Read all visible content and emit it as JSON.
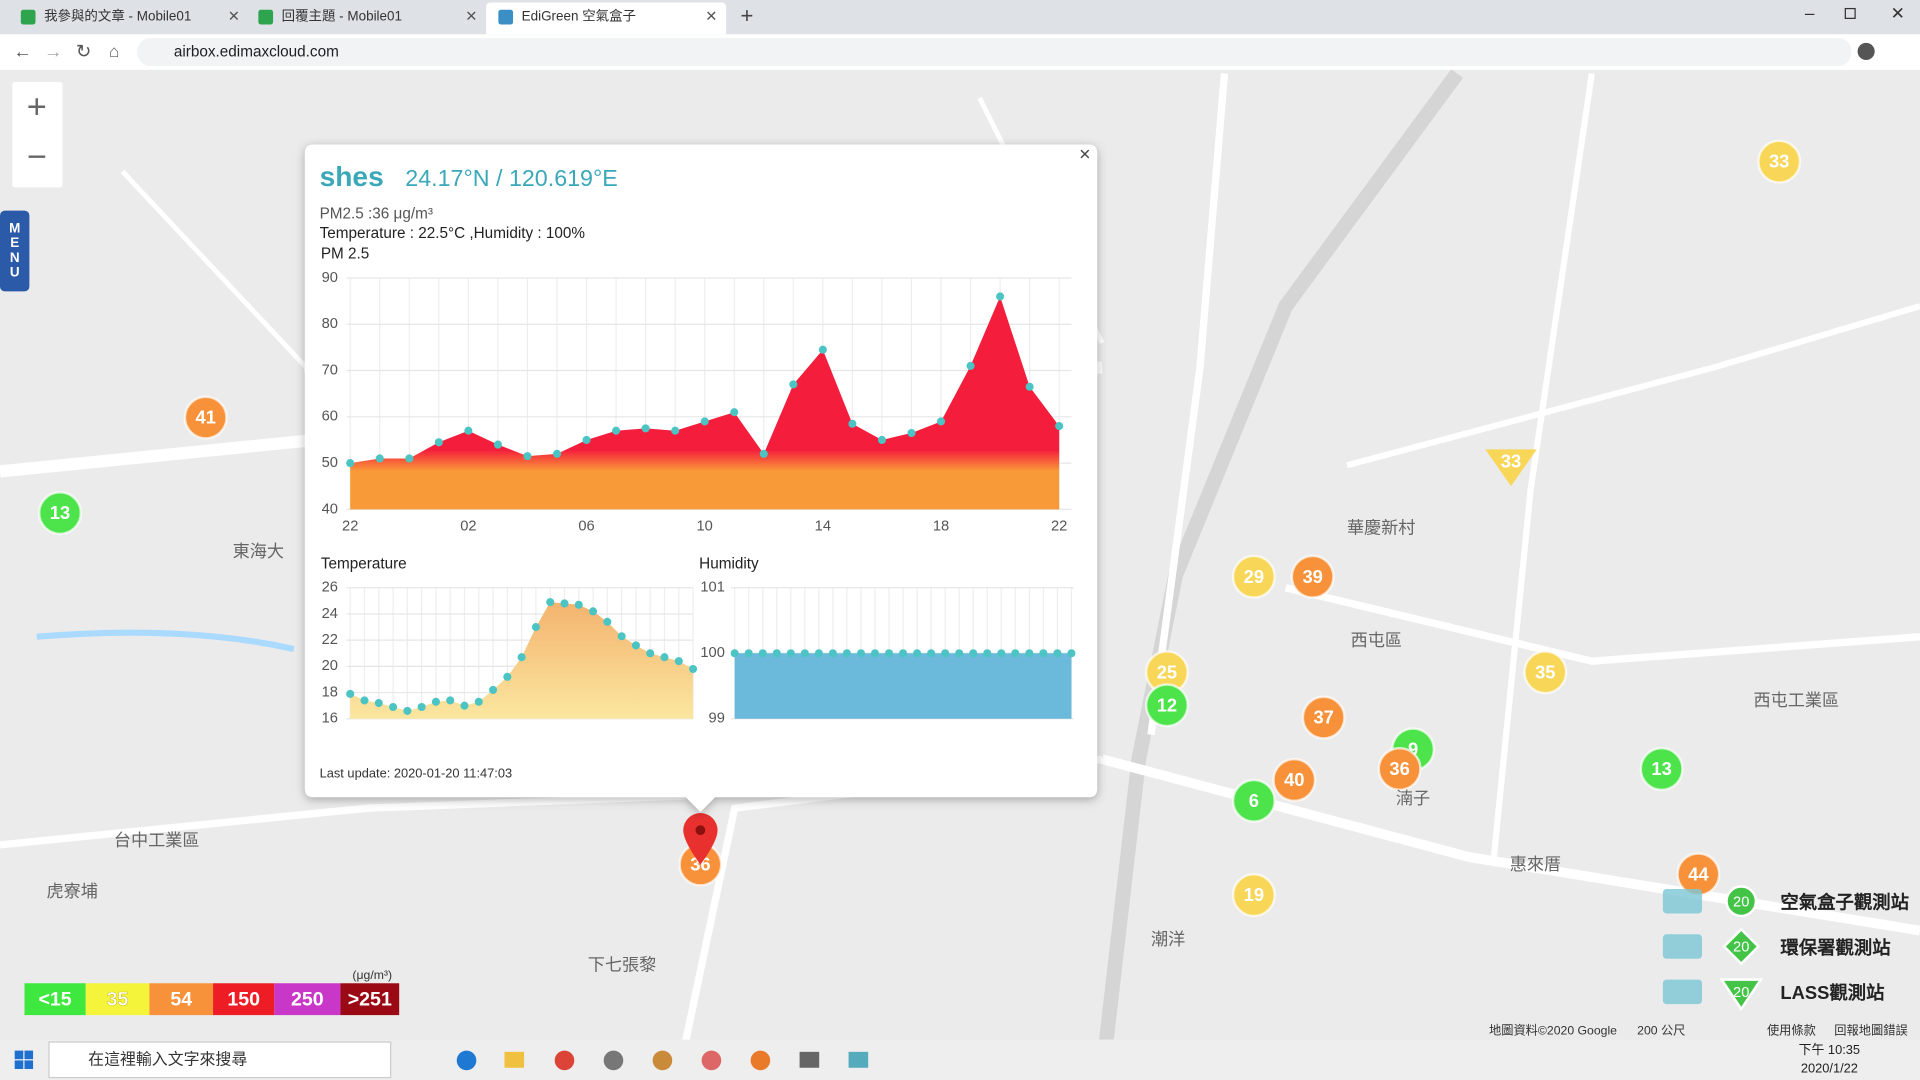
{
  "browser": {
    "tabs": [
      "我參與的文章 - Mobile01",
      "回覆主題 - Mobile01",
      "EdiGreen 空氣盒子"
    ],
    "url": "airbox.edimaxcloud.com"
  },
  "menu": "MENU",
  "popup": {
    "title": "shes",
    "coords": "24.17°N / 120.619°E",
    "pm_line": "PM2.5 :36 μg/m³",
    "weather_line": "Temperature : 22.5°C ,Humidity : 100%",
    "last_update": "Last update: 2020-01-20 11:47:03"
  },
  "chart_data": [
    {
      "type": "area",
      "title": "PM 2.5",
      "categories": [
        "22",
        null,
        null,
        null,
        "02",
        null,
        null,
        null,
        "06",
        null,
        null,
        null,
        "10",
        null,
        null,
        null,
        "14",
        null,
        null,
        null,
        "18",
        null,
        null,
        null,
        "22"
      ],
      "values": [
        50,
        51,
        51,
        54.5,
        57,
        54,
        51.5,
        52,
        55,
        57,
        57.5,
        57,
        59,
        61,
        52,
        67,
        74.5,
        58.5,
        55,
        56.5,
        59,
        71,
        86,
        66.5,
        58
      ],
      "colors": [
        "#f51d3c",
        "#f99a38"
      ],
      "point_color": "#4cc4c4",
      "ylim": [
        40,
        90
      ],
      "yticks": [
        40,
        50,
        60,
        70,
        80,
        90
      ],
      "grid": true
    },
    {
      "type": "area",
      "title": "Temperature",
      "values": [
        17.9,
        17.4,
        17.2,
        16.9,
        16.6,
        16.9,
        17.3,
        17.4,
        17,
        17.3,
        18.2,
        19.2,
        20.7,
        23,
        24.9,
        24.8,
        24.7,
        24.2,
        23.4,
        22.3,
        21.6,
        21,
        20.7,
        20.4,
        19.8
      ],
      "colors": [
        "#f3b36e",
        "#fbe7a0"
      ],
      "point_color": "#4cc4c4",
      "ylim": [
        16,
        26
      ],
      "yticks": [
        16,
        18,
        20,
        22,
        24,
        26
      ],
      "grid": true
    },
    {
      "type": "area",
      "title": "Humidity",
      "values": [
        100,
        100,
        100,
        100,
        100,
        100,
        100,
        100,
        100,
        100,
        100,
        100,
        100,
        100,
        100,
        100,
        100,
        100,
        100,
        100,
        100,
        100,
        100,
        100,
        100
      ],
      "colors": [
        "#6bb9db",
        "#6bb9db"
      ],
      "point_color": "#4cc4c4",
      "ylim": [
        99,
        101
      ],
      "yticks": [
        99,
        100,
        101
      ],
      "grid": true
    }
  ],
  "markers": [
    {
      "value": 33,
      "color": "#f7d658"
    },
    {
      "value": 41,
      "color": "#f7923a"
    },
    {
      "value": 13,
      "color": "#4de34a"
    },
    {
      "value": 33,
      "color": "#f7d658",
      "shape": "triangle"
    },
    {
      "value": 29,
      "color": "#f7d658"
    },
    {
      "value": 39,
      "color": "#f7923a"
    },
    {
      "value": 25,
      "color": "#f7d658"
    },
    {
      "value": 12,
      "color": "#4de34a"
    },
    {
      "value": 35,
      "color": "#f7d658"
    },
    {
      "value": 37,
      "color": "#f7923a"
    },
    {
      "value": 9,
      "color": "#4de34a"
    },
    {
      "value": 36,
      "color": "#f7923a"
    },
    {
      "value": 40,
      "color": "#f7923a"
    },
    {
      "value": 6,
      "color": "#4de34a"
    },
    {
      "value": 13,
      "color": "#4de34a"
    },
    {
      "value": 19,
      "color": "#f7d658"
    },
    {
      "value": 36,
      "color": "#f7923a"
    },
    {
      "value": 44,
      "color": "#f7923a"
    }
  ],
  "map_labels": [
    "東海大",
    "台中工業區",
    "虎寮埔",
    "下七張黎",
    "華慶新村",
    "西屯區",
    "湳子",
    "惠來厝",
    "潮洋",
    "西屯工業區"
  ],
  "scale_legend": {
    "unit": "(μg/m³)",
    "items": [
      {
        "label": "<15",
        "color": "#3ee83e"
      },
      {
        "label": "35",
        "color": "#f4f43a"
      },
      {
        "label": "54",
        "color": "#f7923a"
      },
      {
        "label": "150",
        "color": "#ee1c25"
      },
      {
        "label": "250",
        "color": "#c837c8"
      },
      {
        "label": ">251",
        "color": "#9b0a14"
      }
    ]
  },
  "station_legend": {
    "count": "20",
    "items": [
      "空氣盒子觀測站",
      "環保署觀測站",
      "LASS觀測站"
    ]
  },
  "attribution": [
    "地圖資料©2020 Google",
    "200 公尺",
    "使用條款",
    "回報地圖錯誤"
  ],
  "taskbar": {
    "search": "在這裡輸入文字來搜尋",
    "time": "下午 10:35",
    "date": "2020/1/22"
  }
}
